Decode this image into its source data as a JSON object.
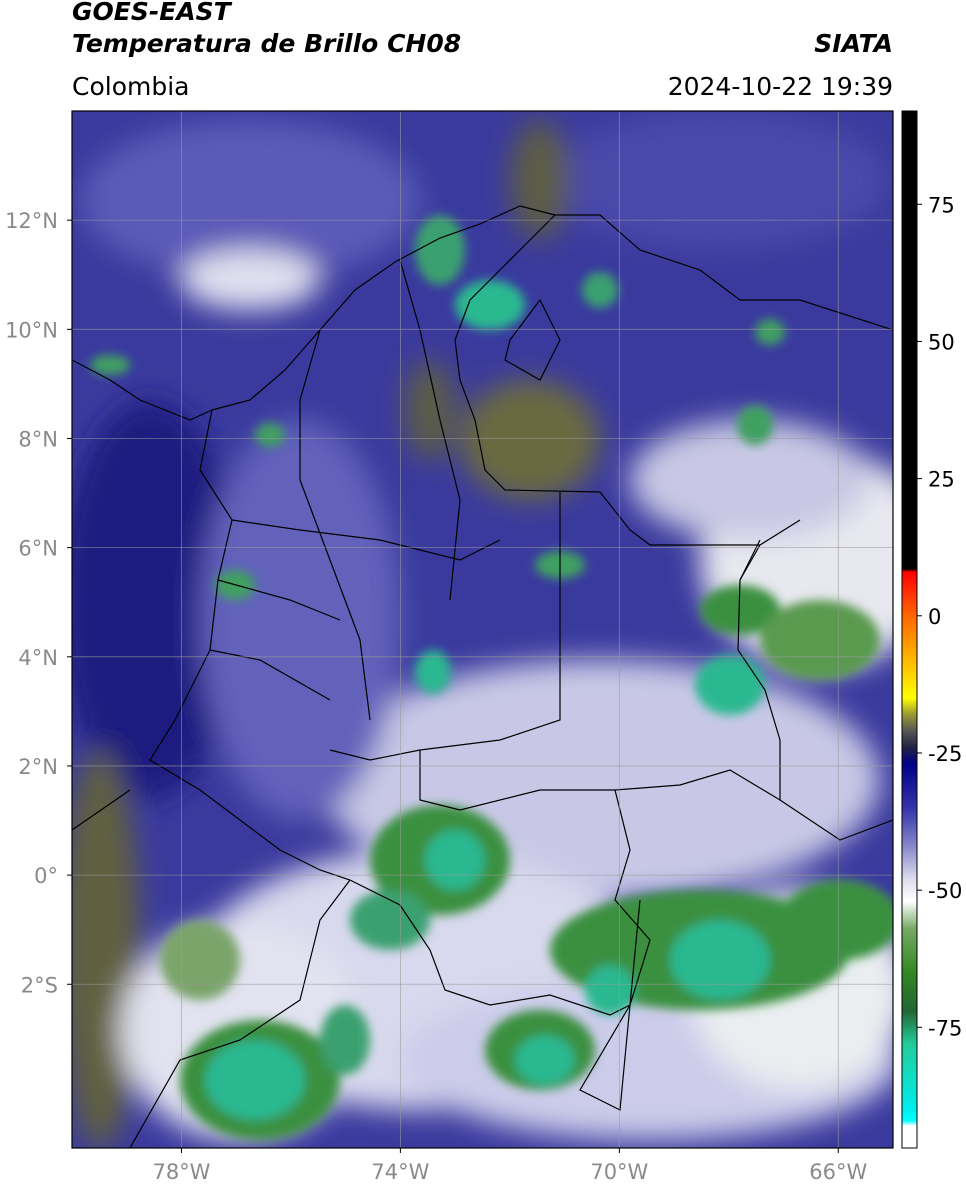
{
  "header": {
    "title": "GOES-EAST",
    "subtitle": "Temperatura de Brillo CH08",
    "source": "SIATA",
    "region": "Colombia",
    "datetime": "2024-10-22 19:39"
  },
  "map": {
    "xlim": [
      -80,
      -65
    ],
    "ylim": [
      -5,
      14
    ],
    "xticks": [
      {
        "value": -78,
        "label": "78°W"
      },
      {
        "value": -74,
        "label": "74°W"
      },
      {
        "value": -70,
        "label": "70°W"
      },
      {
        "value": -66,
        "label": "66°W"
      }
    ],
    "yticks": [
      {
        "value": 12,
        "label": "12°N"
      },
      {
        "value": 10,
        "label": "10°N"
      },
      {
        "value": 8,
        "label": "8°N"
      },
      {
        "value": 6,
        "label": "6°N"
      },
      {
        "value": 4,
        "label": "4°N"
      },
      {
        "value": 2,
        "label": "2°N"
      },
      {
        "value": 0,
        "label": "0°"
      },
      {
        "value": -2,
        "label": "2°S"
      }
    ],
    "grid": true
  },
  "colorbar": {
    "lim": [
      -97,
      92
    ],
    "ticks": [
      75,
      50,
      25,
      0,
      -25,
      -50,
      -75
    ],
    "stops": [
      {
        "value": 92,
        "color": "#000000"
      },
      {
        "value": 8.5,
        "color": "#000000"
      },
      {
        "value": 8,
        "color": "#ff0000"
      },
      {
        "value": 0,
        "color": "#ff6600"
      },
      {
        "value": -10,
        "color": "#ffcc00"
      },
      {
        "value": -15,
        "color": "#ffff00"
      },
      {
        "value": -18,
        "color": "#999933"
      },
      {
        "value": -21,
        "color": "#555555"
      },
      {
        "value": -24,
        "color": "#222244"
      },
      {
        "value": -27,
        "color": "#000088"
      },
      {
        "value": -35,
        "color": "#3333aa"
      },
      {
        "value": -42,
        "color": "#8888cc"
      },
      {
        "value": -48,
        "color": "#ddddee"
      },
      {
        "value": -52,
        "color": "#ffffff"
      },
      {
        "value": -57,
        "color": "#77aa66"
      },
      {
        "value": -65,
        "color": "#338822"
      },
      {
        "value": -72,
        "color": "#226633"
      },
      {
        "value": -78,
        "color": "#22cc99"
      },
      {
        "value": -90,
        "color": "#00eeee"
      },
      {
        "value": -92,
        "color": "#00ffff"
      },
      {
        "value": -93,
        "color": "#ffffff"
      },
      {
        "value": -97,
        "color": "#ffffff"
      }
    ]
  }
}
